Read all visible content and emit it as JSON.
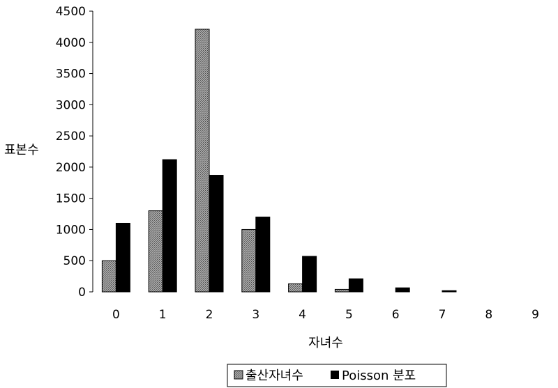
{
  "chart_data": {
    "type": "bar",
    "categories": [
      "0",
      "1",
      "2",
      "3",
      "4",
      "5",
      "6",
      "7",
      "8",
      "9"
    ],
    "series": [
      {
        "name": "출산자녀수",
        "values": [
          500,
          1300,
          4210,
          1000,
          130,
          40,
          0,
          0,
          0,
          0
        ],
        "color": "#8c8c8c"
      },
      {
        "name": "Poisson 분포",
        "values": [
          1100,
          2120,
          1870,
          1200,
          570,
          210,
          65,
          20,
          0,
          0
        ],
        "color": "#000000"
      }
    ],
    "xlabel": "자녀수",
    "ylabel": "표본수",
    "ylim": [
      0,
      4500
    ],
    "yticks": [
      0,
      500,
      1000,
      1500,
      2000,
      2500,
      3000,
      3500,
      4000,
      4500
    ],
    "legend_position": "bottom-center",
    "grid": false
  }
}
